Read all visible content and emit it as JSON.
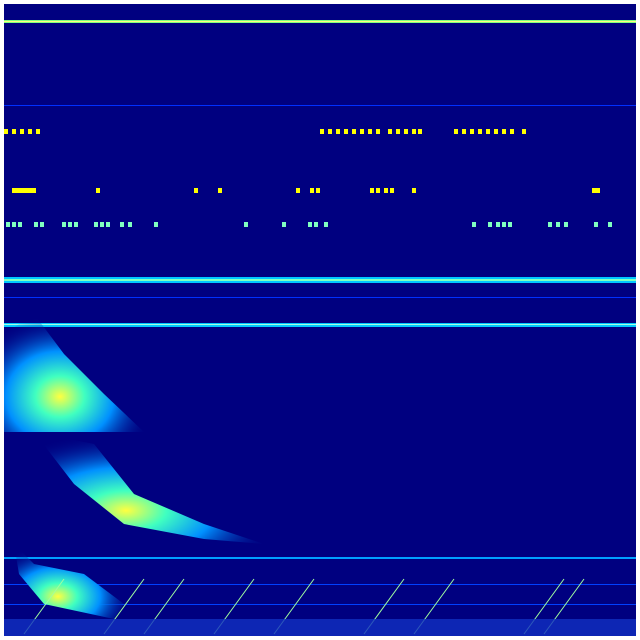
{
  "colors": {
    "background": "#000080",
    "low": "#0000ff",
    "mid": "#00c8ff",
    "high": "#7fff7f",
    "peak": "#ffff00"
  }
}
